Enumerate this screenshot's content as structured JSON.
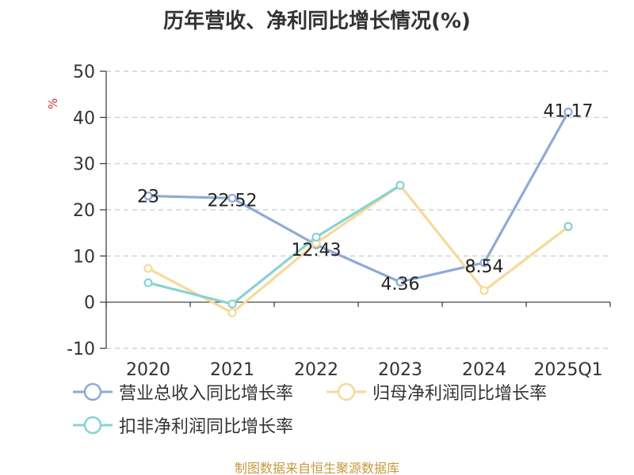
{
  "chart_data": {
    "type": "line",
    "title": "历年营收、净利同比增长情况(%)",
    "ylabel": "%",
    "categories": [
      "2020",
      "2021",
      "2022",
      "2023",
      "2024",
      "2025Q1"
    ],
    "ylim": [
      -10,
      50
    ],
    "yticks": [
      -10,
      0,
      10,
      20,
      30,
      40,
      50
    ],
    "grid": true,
    "legend_position": "bottom-left",
    "series": [
      {
        "name": "营业总收入同比增长率",
        "color": "#8eaad6",
        "values": [
          23,
          22.52,
          12.43,
          4.36,
          8.54,
          41.17
        ],
        "labels": [
          "23",
          "22.52",
          "12.43",
          "4.36",
          "8.54",
          "41.17"
        ]
      },
      {
        "name": "归母净利润同比增长率",
        "color": "#f7d99a",
        "values": [
          7.3,
          -2.3,
          12.8,
          25.3,
          2.5,
          16.3
        ]
      },
      {
        "name": "扣非净利润同比增长率",
        "color": "#88d3d3",
        "values": [
          4.2,
          -0.4,
          14.1,
          25.3,
          null,
          16.4
        ]
      }
    ]
  },
  "source": "制图数据来自恒生聚源数据库"
}
